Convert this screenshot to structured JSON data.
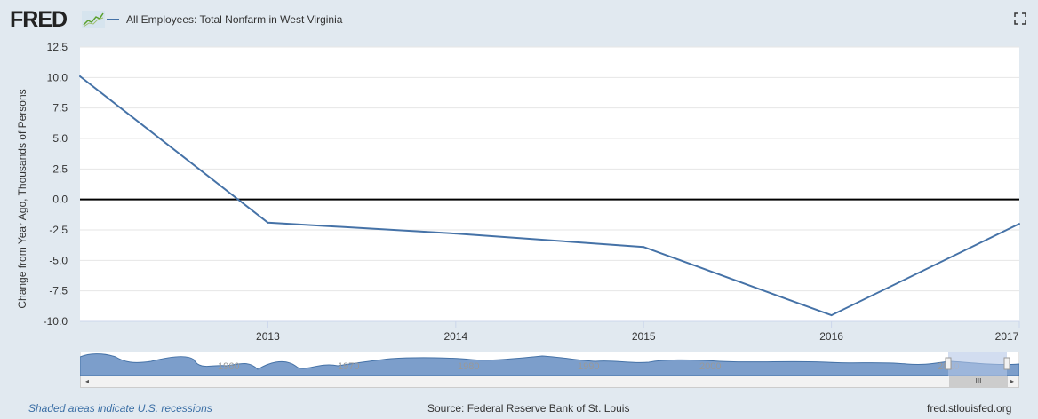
{
  "header": {
    "logo_text": "FRED",
    "legend_label": "All Employees: Total Nonfarm in West Virginia",
    "series_color": "#4572a7"
  },
  "icons": {
    "logo_spark": "sparkline-icon",
    "fullscreen": "fullscreen-icon"
  },
  "chart_data": {
    "type": "line",
    "ylabel": "Change from Year Ago, Thousands of Persons",
    "ylim": [
      -10.0,
      12.5
    ],
    "yticks": [
      "12.5",
      "10.0",
      "7.5",
      "5.0",
      "2.5",
      "0.0",
      "-2.5",
      "-5.0",
      "-7.5",
      "-10.0"
    ],
    "ytick_values": [
      12.5,
      10.0,
      7.5,
      5.0,
      2.5,
      0.0,
      -2.5,
      -5.0,
      -7.5,
      -10.0
    ],
    "xlim": [
      2012.0,
      2017.0
    ],
    "xticks": [
      "2013",
      "2014",
      "2015",
      "2016",
      "2017"
    ],
    "xtick_values": [
      2013,
      2014,
      2015,
      2016,
      2017
    ],
    "grid": true,
    "zero_line": true,
    "series": [
      {
        "name": "All Employees: Total Nonfarm in West Virginia",
        "x": [
          2012,
          2013,
          2014,
          2015,
          2016,
          2017
        ],
        "y": [
          10.1,
          -1.9,
          -2.8,
          -3.9,
          -9.5,
          -2.0
        ]
      }
    ],
    "navigator_labels": [
      "1960",
      "1970",
      "1980",
      "1990",
      "2000",
      "2010"
    ]
  },
  "footer": {
    "recession_note": "Shaded areas indicate U.S. recessions",
    "source": "Source: Federal Reserve Bank of St. Louis",
    "site": "fred.stlouisfed.org"
  },
  "scrollbar": {
    "left_arrow": "◂",
    "right_arrow": "▸",
    "thumb_grip": "III"
  }
}
